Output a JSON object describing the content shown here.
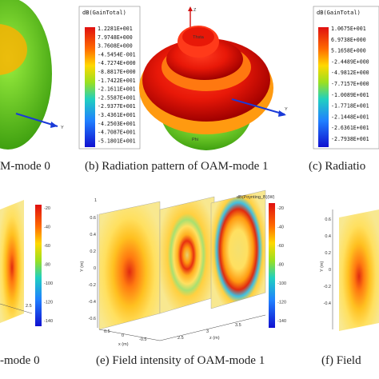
{
  "captions": {
    "a": "M-mode 0",
    "b": "(b) Radiation pattern of OAM-mode 1",
    "c": "(c) Radiatio",
    "d": "-mode 0",
    "e": "(e) Field intensity of OAM-mode 1",
    "f": "(f) Field"
  },
  "colorbar_b": {
    "title": "dB(GainTotal)",
    "labels": [
      "1.2281E+001",
      "7.9748E+000",
      "3.7608E+000",
      "-4.5454E-001",
      "-4.7274E+000",
      "-8.8817E+000",
      "-1.7422E+001",
      "-2.1611E+001",
      "-2.5587E+001",
      "-2.9377E+001",
      "-3.4361E+001",
      "-4.2503E+001",
      "-4.7087E+001",
      "-5.1801E+001"
    ]
  },
  "colorbar_c": {
    "title": "dB(GainTotal)",
    "labels": [
      "1.0675E+001",
      "6.9738E+000",
      "5.1658E+000",
      "-2.4489E+000",
      "-4.9812E+000",
      "-7.7157E+000",
      "-1.0089E+001",
      "-1.7718E+001",
      "-2.1448E+001",
      "-2.6361E+001",
      "-2.7938E+001"
    ]
  },
  "pattern_b": {
    "top_label": "Z",
    "right_label": "Y",
    "tip_label": "Thsta",
    "bottom_label": "Phi"
  },
  "axis_a_label": "Y",
  "field_e": {
    "cb_title": "dB(Poynting_B)(W)",
    "cb_ticks": [
      "-20",
      "-40",
      "-60",
      "-80",
      "-100",
      "-120",
      "-140"
    ],
    "y_axis": "Y (m)",
    "x_axis": "x (m)",
    "z_axis": "z (m)",
    "y_ticks": [
      "0.6",
      "0.4",
      "0.2",
      "0",
      "-0.2",
      "-0.4",
      "-0.6"
    ],
    "z_ticks": [
      "2.5",
      "3",
      "3.5"
    ],
    "x_ticks": [
      "0.5",
      "0",
      "-0.5"
    ]
  },
  "field_d": {
    "cb_ticks": [
      "-20",
      "-40",
      "-60",
      "-80",
      "-100",
      "-120",
      "-140"
    ],
    "z_ticks": [
      "2.5"
    ]
  },
  "field_f": {
    "y_axis": "Y (m)",
    "y_ticks": [
      "0.6",
      "0.4",
      "0.2",
      "0",
      "-0.2",
      "-0.4"
    ]
  }
}
